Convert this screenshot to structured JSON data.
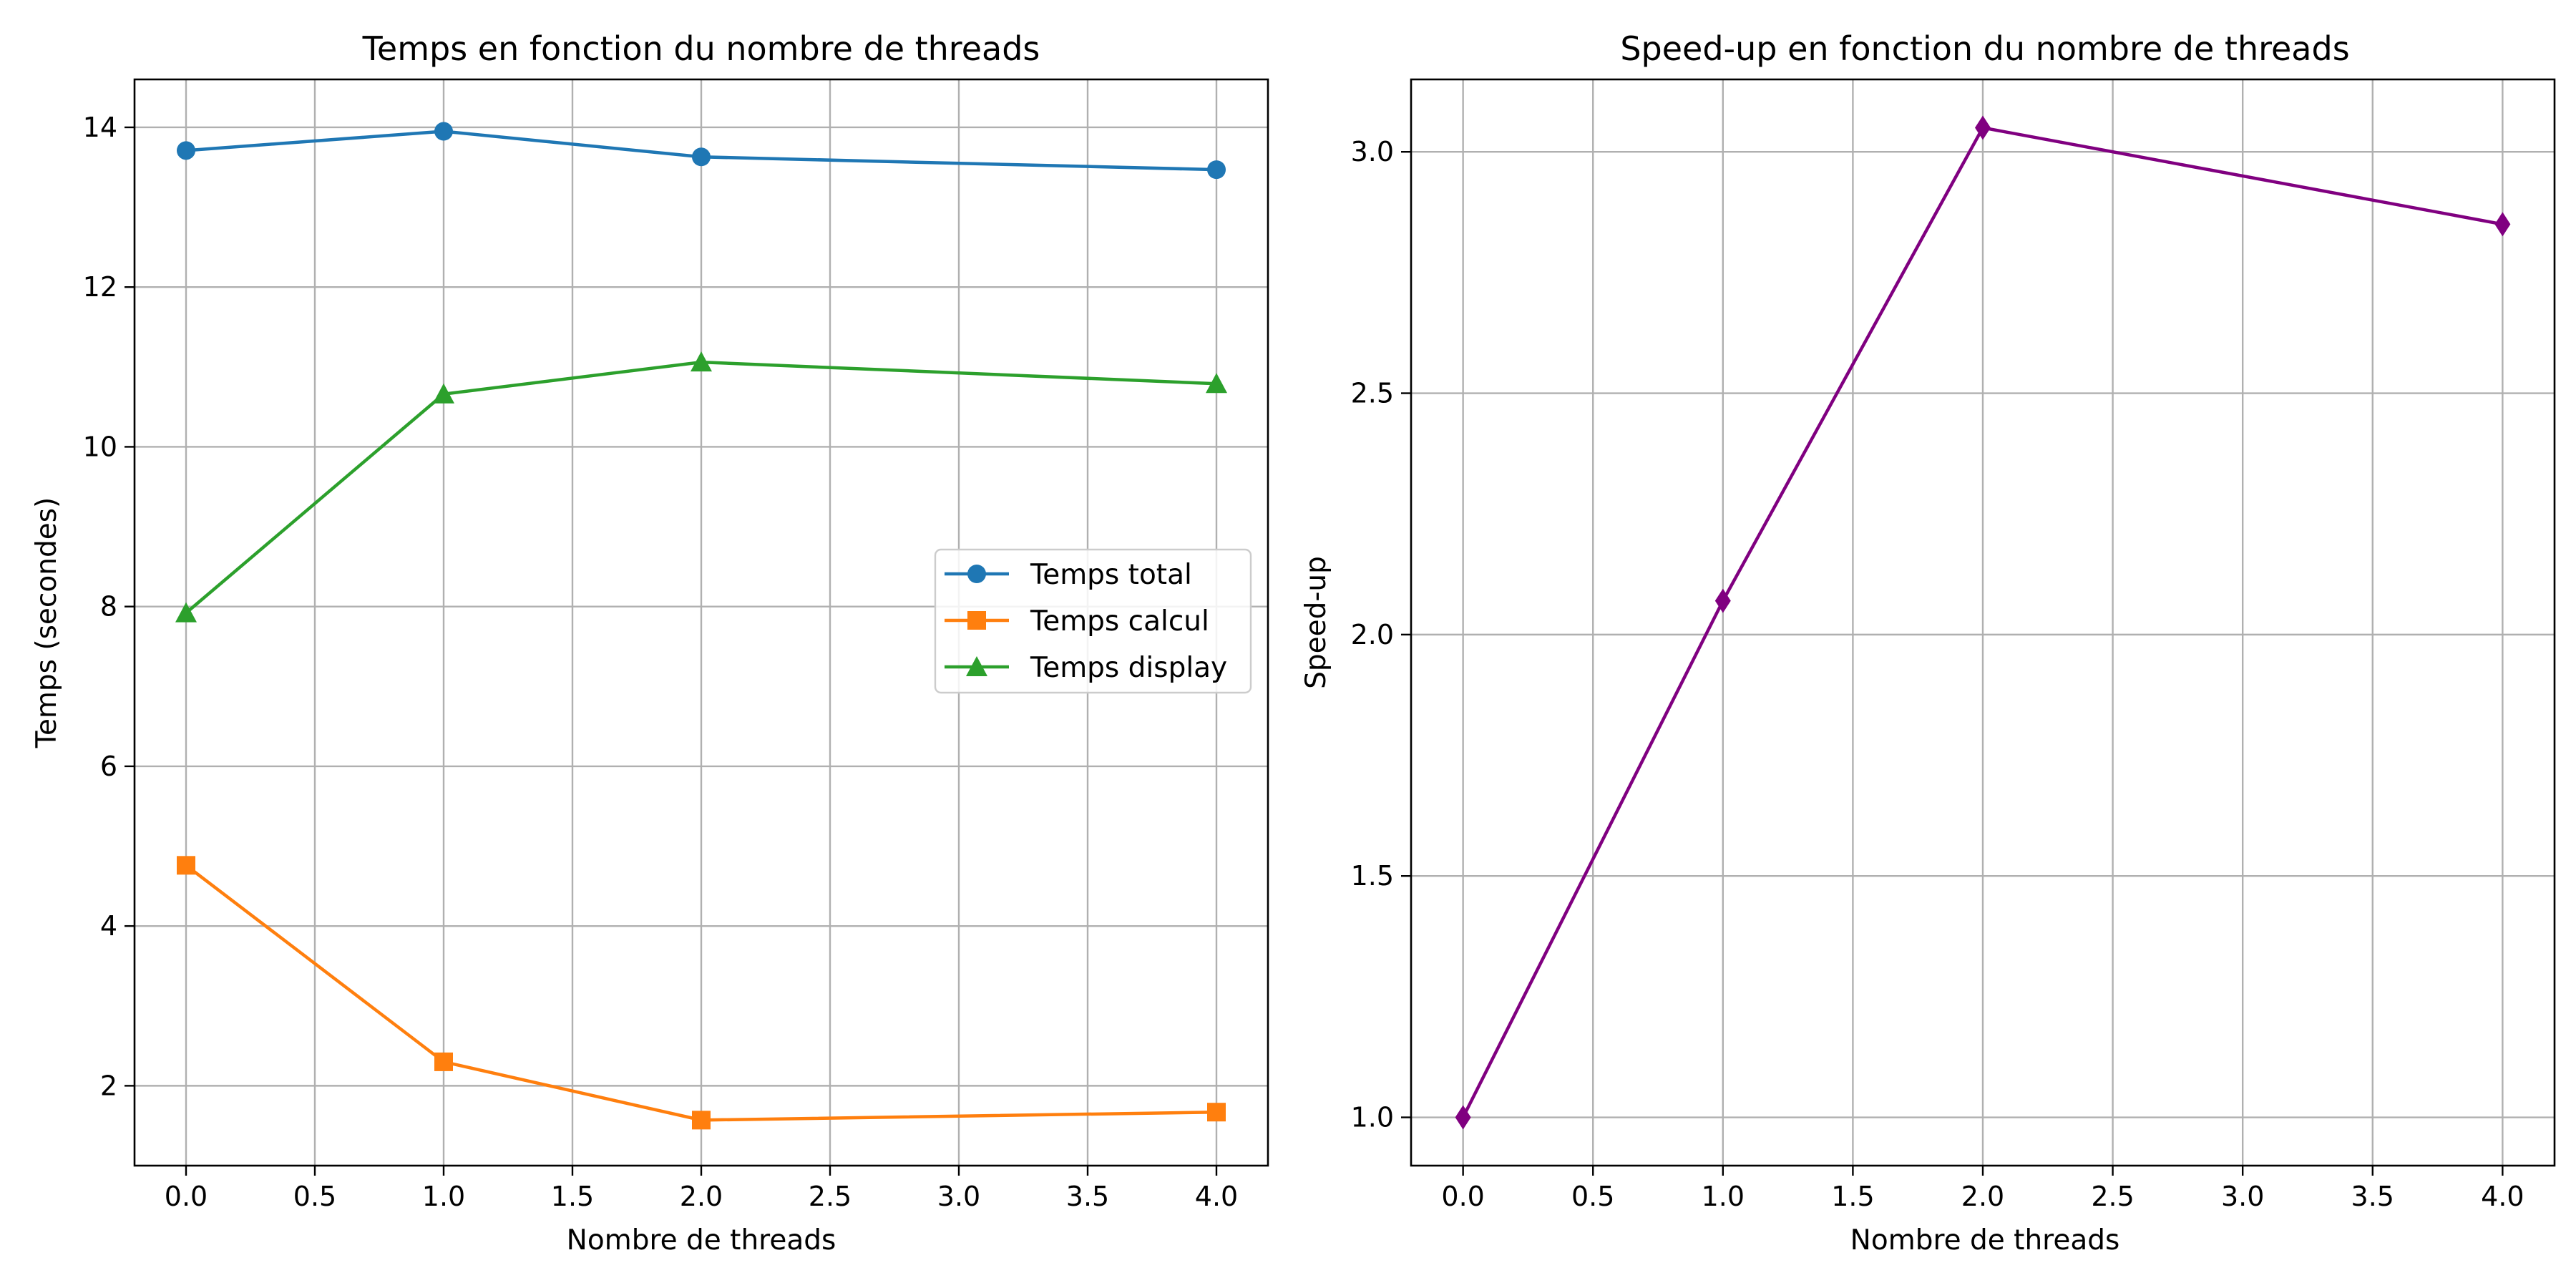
{
  "figure": {
    "background": "#ffffff"
  },
  "chart_data": [
    {
      "type": "line",
      "title": "Temps en fonction du nombre de threads",
      "xlabel": "Nombre de threads",
      "ylabel": "Temps (secondes)",
      "xlim": [
        -0.2,
        4.2
      ],
      "ylim": [
        1.0,
        14.6
      ],
      "xticks": [
        "0.0",
        "0.5",
        "1.0",
        "1.5",
        "2.0",
        "2.5",
        "3.0",
        "3.5",
        "4.0"
      ],
      "yticks": [
        "2",
        "4",
        "6",
        "8",
        "10",
        "12",
        "14"
      ],
      "grid": true,
      "legend_position": "center-right",
      "x": [
        0,
        1,
        2,
        4
      ],
      "series": [
        {
          "name": "Temps total",
          "values": [
            13.71,
            13.95,
            13.63,
            13.47
          ],
          "color": "#1f77b4",
          "marker": "circle"
        },
        {
          "name": "Temps calcul",
          "values": [
            4.76,
            2.3,
            1.57,
            1.67
          ],
          "color": "#ff7f0e",
          "marker": "square"
        },
        {
          "name": "Temps display",
          "values": [
            7.92,
            10.66,
            11.06,
            10.79
          ],
          "color": "#2ca02c",
          "marker": "triangle"
        }
      ]
    },
    {
      "type": "line",
      "title": "Speed-up en fonction du nombre de threads",
      "xlabel": "Nombre de threads",
      "ylabel": "Speed-up",
      "xlim": [
        -0.2,
        4.2
      ],
      "ylim": [
        0.9,
        3.15
      ],
      "xticks": [
        "0.0",
        "0.5",
        "1.0",
        "1.5",
        "2.0",
        "2.5",
        "3.0",
        "3.5",
        "4.0"
      ],
      "yticks": [
        "1.0",
        "1.5",
        "2.0",
        "2.5",
        "3.0"
      ],
      "grid": true,
      "x": [
        0,
        1,
        2,
        4
      ],
      "series": [
        {
          "values": [
            1.0,
            2.07,
            3.05,
            2.85
          ],
          "color": "#800080",
          "marker": "diamond"
        }
      ]
    }
  ]
}
